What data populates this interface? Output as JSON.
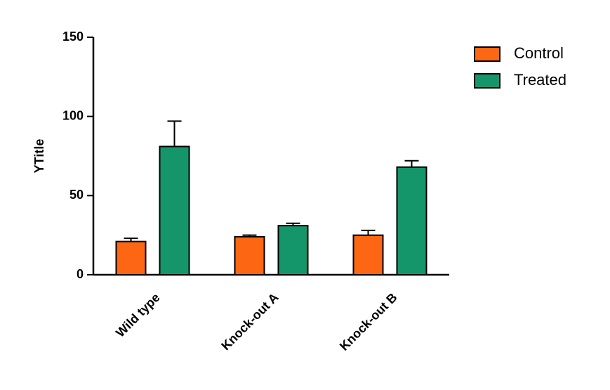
{
  "chart_data": {
    "type": "bar",
    "y_label": "YTitle",
    "categories": [
      "Wild type",
      "Knock-out A",
      "Knock-out B"
    ],
    "series": [
      {
        "name": "Control",
        "color": "#fd6613",
        "values": [
          21,
          24,
          25
        ],
        "errors": [
          2,
          1,
          3
        ]
      },
      {
        "name": "Treated",
        "color": "#14966a",
        "values": [
          81,
          31,
          68
        ],
        "errors": [
          16,
          1.5,
          4
        ]
      }
    ],
    "ylim": [
      0,
      150
    ],
    "yticks": [
      0,
      50,
      100,
      150
    ],
    "legend": "upper right"
  }
}
